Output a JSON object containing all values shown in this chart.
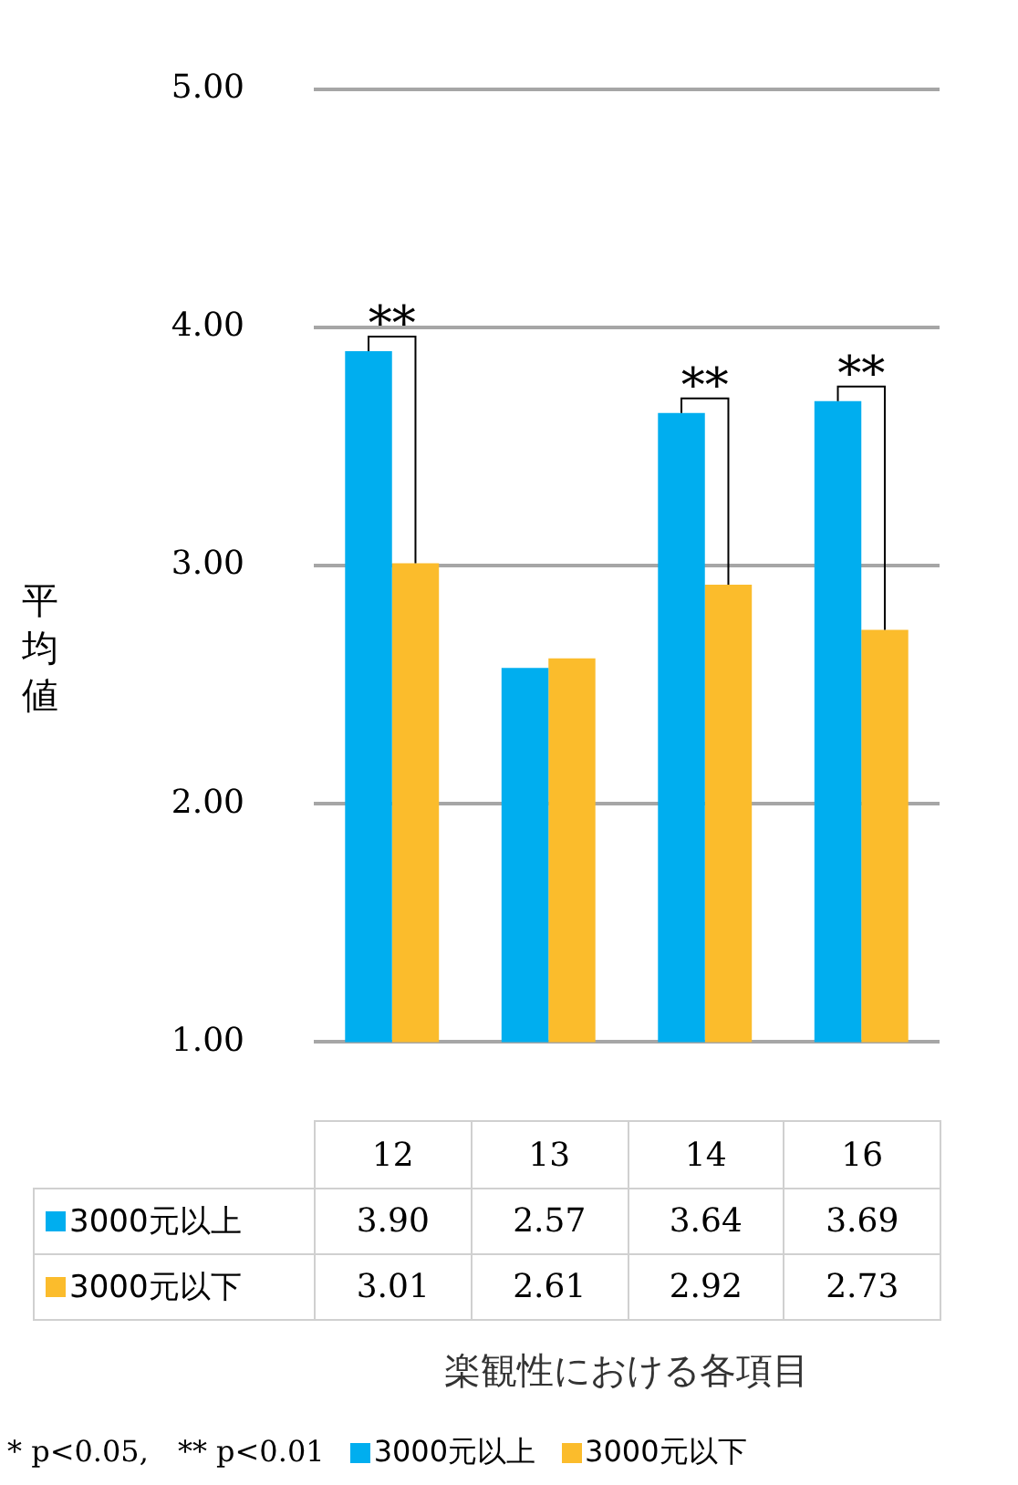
{
  "chart_data": {
    "type": "bar",
    "ylabel": "平均値",
    "xlabel": "楽観性における各項目",
    "categories": [
      "12",
      "13",
      "14",
      "16"
    ],
    "series": [
      {
        "name": "3000元以上",
        "color": "#00aeef",
        "values": [
          3.9,
          2.57,
          3.64,
          3.69
        ],
        "value_labels": [
          "3.90",
          "2.57",
          "3.64",
          "3.69"
        ]
      },
      {
        "name": "3000元以下",
        "color": "#fbbc2c",
        "values": [
          3.01,
          2.61,
          2.92,
          2.73
        ],
        "value_labels": [
          "3.01",
          "2.61",
          "2.92",
          "2.73"
        ]
      }
    ],
    "ylim": [
      1,
      5
    ],
    "yticks": [
      {
        "value": 1,
        "label": "1.00"
      },
      {
        "value": 2,
        "label": "2.00"
      },
      {
        "value": 3,
        "label": "3.00"
      },
      {
        "value": 4,
        "label": "4.00"
      },
      {
        "value": 5,
        "label": "5.00"
      }
    ],
    "grid": "y",
    "legend": "bottom",
    "annotations": [
      {
        "text": "**",
        "x": "12",
        "y": 3.9
      },
      {
        "text": "**",
        "x": "14",
        "y": 3.64
      },
      {
        "text": "**",
        "x": "16",
        "y": 3.69
      },
      "* p<0.05,　** p<0.01"
    ]
  }
}
